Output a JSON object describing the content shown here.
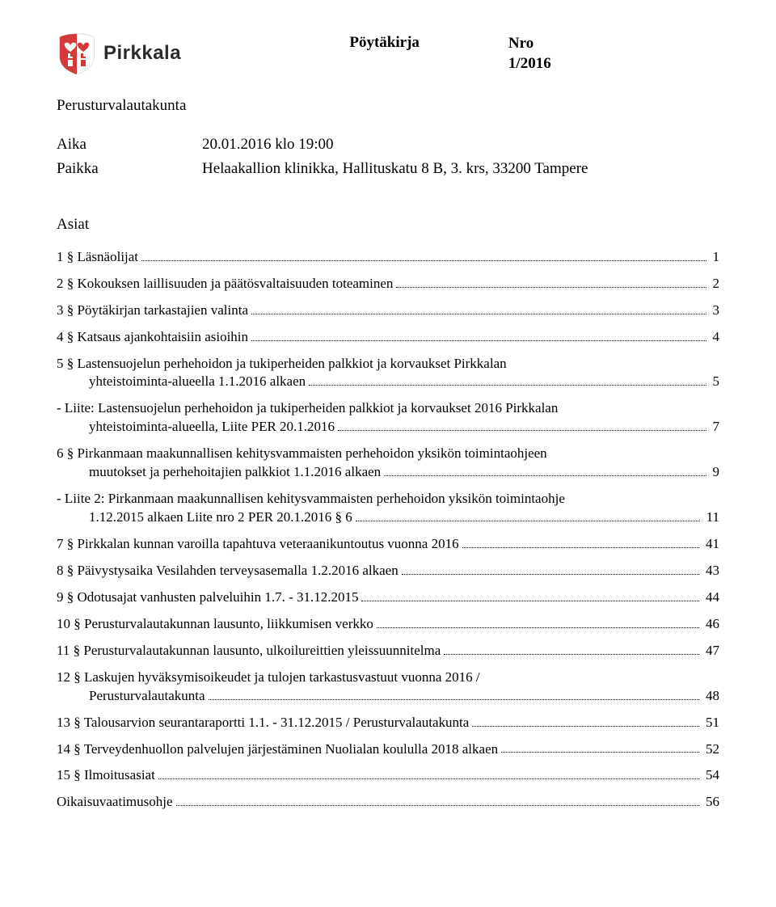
{
  "header": {
    "logo_text": "Pirkkala",
    "doc_type": "Pöytäkirja",
    "nro_label": "Nro",
    "nro_value": "1/2016"
  },
  "committee": "Perusturvalautakunta",
  "meta": {
    "aika_label": "Aika",
    "aika_value": "20.01.2016 klo 19:00",
    "paikka_label": "Paikka",
    "paikka_value": "Helaakallion klinikka, Hallituskatu 8 B, 3. krs, 33200 Tampere"
  },
  "asiat_heading": "Asiat",
  "toc": [
    {
      "text": "1 § Läsnäolijat",
      "page": "1"
    },
    {
      "text": "2 § Kokouksen laillisuuden ja päätösvaltaisuuden toteaminen",
      "page": "2"
    },
    {
      "text": "3 § Pöytäkirjan tarkastajien valinta",
      "page": "3"
    },
    {
      "text": "4 § Katsaus ajankohtaisiin asioihin",
      "page": "4"
    },
    {
      "text_l1": "5 § Lastensuojelun perhehoidon ja tukiperheiden palkkiot ja korvaukset Pirkkalan",
      "text_l2": "yhteistoiminta-alueella 1.1.2016 alkaen",
      "page": "5",
      "wrap": true
    },
    {
      "text_l1": "- Liite: Lastensuojelun perhehoidon ja tukiperheiden palkkiot ja korvaukset 2016 Pirkkalan",
      "text_l2": "yhteistoiminta-alueella, Liite PER 20.1.2016",
      "page": "7",
      "wrap": true,
      "sub": true
    },
    {
      "text_l1": "6 § Pirkanmaan maakunnallisen kehitysvammaisten perhehoidon yksikön toimintaohjeen",
      "text_l2": "muutokset ja perhehoitajien palkkiot 1.1.2016 alkaen",
      "page": "9",
      "wrap": true
    },
    {
      "text_l1": "- Liite 2: Pirkanmaan maakunnallisen kehitysvammaisten perhehoidon yksikön toimintaohje",
      "text_l2": "1.12.2015 alkaen Liite nro 2 PER 20.1.2016 § 6",
      "page": "11",
      "wrap": true,
      "sub": true
    },
    {
      "text": "7 § Pirkkalan kunnan varoilla tapahtuva veteraanikuntoutus vuonna 2016",
      "page": "41"
    },
    {
      "text": "8 § Päivystysaika Vesilahden terveysasemalla 1.2.2016 alkaen",
      "page": "43"
    },
    {
      "text": "9 § Odotusajat vanhusten palveluihin 1.7. - 31.12.2015",
      "page": "44"
    },
    {
      "text": "10 § Perusturvalautakunnan lausunto, liikkumisen verkko",
      "page": "46"
    },
    {
      "text": "11 § Perusturvalautakunnan lausunto, ulkoilureittien yleissuunnitelma",
      "page": "47"
    },
    {
      "text_l1": "12 § Laskujen hyväksymisoikeudet ja tulojen tarkastusvastuut vuonna 2016 /",
      "text_l2": "Perusturvalautakunta",
      "page": "48",
      "wrap": true
    },
    {
      "text": "13 § Talousarvion seurantaraportti 1.1. - 31.12.2015 / Perusturvalautakunta",
      "page": "51"
    },
    {
      "text": "14 § Terveydenhuollon palvelujen järjestäminen Nuolialan koululla 2018 alkaen",
      "page": "52"
    },
    {
      "text": "15 § Ilmoitusasiat",
      "page": "54"
    },
    {
      "text": "Oikaisuvaatimusohje",
      "page": "56"
    }
  ]
}
